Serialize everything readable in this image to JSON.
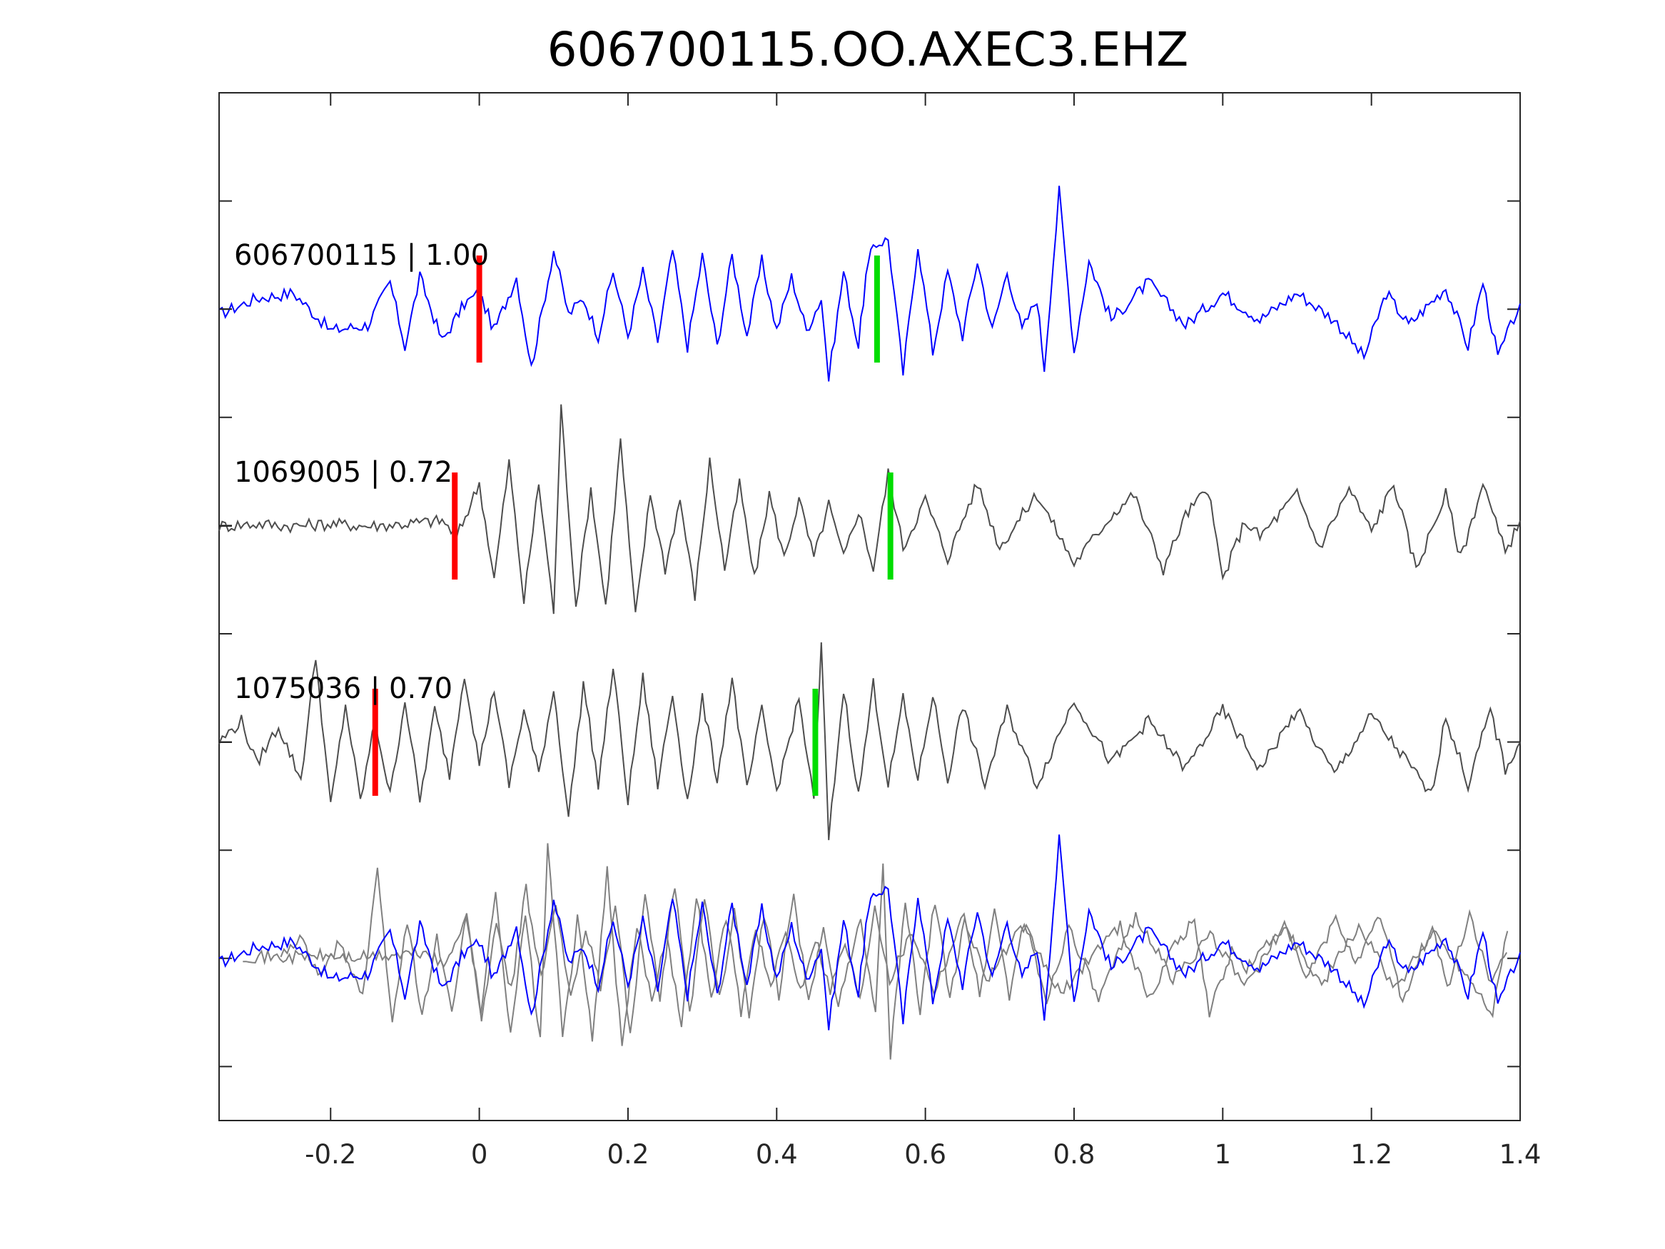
{
  "chart_data": {
    "type": "line",
    "title": "606700115.OO.AXEC3.EHZ",
    "xlabel": "",
    "ylabel": "",
    "xlim": [
      -0.35,
      1.4
    ],
    "xticks": [
      "-0.2",
      "0",
      "0.2",
      "0.4",
      "0.6",
      "0.8",
      "1",
      "1.2",
      "1.4"
    ],
    "xtick_values": [
      -0.2,
      0,
      0.2,
      0.4,
      0.6,
      0.8,
      1.0,
      1.2,
      1.4
    ],
    "yticks_labeled": false,
    "grid": false,
    "legend": "none",
    "colors": {
      "main": "#0000ff",
      "neighbor": "#4d4d4d",
      "overlay_neighbor": "#808080",
      "p_pick": "#ff0000",
      "s_pick": "#00dd00"
    },
    "series": [
      {
        "label": "606700115 | 1.00",
        "color": "main",
        "p_pick": 0.0,
        "s_pick": 0.535,
        "waveform": [
          [
            -0.35,
            -0.05
          ],
          [
            -0.3,
            0.1
          ],
          [
            -0.25,
            0.15
          ],
          [
            -0.2,
            -0.2
          ],
          [
            -0.15,
            -0.15
          ],
          [
            -0.12,
            0.25
          ],
          [
            -0.1,
            -0.35
          ],
          [
            -0.08,
            0.3
          ],
          [
            -0.05,
            -0.3
          ],
          [
            -0.02,
            0.05
          ],
          [
            0.0,
            0.15
          ],
          [
            0.02,
            -0.2
          ],
          [
            0.05,
            0.3
          ],
          [
            0.07,
            -0.55
          ],
          [
            0.1,
            0.55
          ],
          [
            0.12,
            -0.05
          ],
          [
            0.14,
            0.1
          ],
          [
            0.16,
            -0.25
          ],
          [
            0.18,
            0.35
          ],
          [
            0.2,
            -0.25
          ],
          [
            0.22,
            0.35
          ],
          [
            0.24,
            -0.3
          ],
          [
            0.26,
            0.55
          ],
          [
            0.28,
            -0.35
          ],
          [
            0.3,
            0.5
          ],
          [
            0.32,
            -0.35
          ],
          [
            0.34,
            0.5
          ],
          [
            0.36,
            -0.25
          ],
          [
            0.38,
            0.45
          ],
          [
            0.4,
            -0.2
          ],
          [
            0.42,
            0.3
          ],
          [
            0.44,
            -0.2
          ],
          [
            0.46,
            0.1
          ],
          [
            0.47,
            -0.65
          ],
          [
            0.49,
            0.35
          ],
          [
            0.51,
            -0.35
          ],
          [
            0.52,
            0.3
          ],
          [
            0.53,
            0.6
          ],
          [
            0.55,
            0.65
          ],
          [
            0.57,
            -0.6
          ],
          [
            0.59,
            0.6
          ],
          [
            0.61,
            -0.4
          ],
          [
            0.63,
            0.35
          ],
          [
            0.65,
            -0.25
          ],
          [
            0.67,
            0.45
          ],
          [
            0.69,
            -0.2
          ],
          [
            0.71,
            0.35
          ],
          [
            0.73,
            -0.2
          ],
          [
            0.75,
            0.1
          ],
          [
            0.76,
            -0.55
          ],
          [
            0.78,
            1.1
          ],
          [
            0.8,
            -0.4
          ],
          [
            0.82,
            0.45
          ],
          [
            0.85,
            -0.1
          ],
          [
            0.9,
            0.25
          ],
          [
            0.95,
            -0.15
          ],
          [
            1.0,
            0.15
          ],
          [
            1.05,
            -0.1
          ],
          [
            1.1,
            0.15
          ],
          [
            1.15,
            -0.1
          ],
          [
            1.19,
            -0.45
          ],
          [
            1.22,
            0.15
          ],
          [
            1.25,
            -0.15
          ],
          [
            1.3,
            0.2
          ],
          [
            1.33,
            -0.35
          ],
          [
            1.35,
            0.25
          ],
          [
            1.37,
            -0.45
          ],
          [
            1.4,
            0.05
          ]
        ]
      },
      {
        "label": "1069005 | 0.72",
        "color": "neighbor",
        "p_pick": -0.033,
        "s_pick": 0.553,
        "waveform": [
          [
            -0.35,
            0.0
          ],
          [
            -0.3,
            0.02
          ],
          [
            -0.25,
            0.0
          ],
          [
            -0.2,
            0.02
          ],
          [
            -0.15,
            0.0
          ],
          [
            -0.1,
            0.02
          ],
          [
            -0.05,
            0.05
          ],
          [
            -0.03,
            -0.1
          ],
          [
            0.0,
            0.4
          ],
          [
            0.02,
            -0.5
          ],
          [
            0.04,
            0.6
          ],
          [
            0.06,
            -0.7
          ],
          [
            0.08,
            0.4
          ],
          [
            0.1,
            -0.8
          ],
          [
            0.11,
            1.1
          ],
          [
            0.13,
            -0.75
          ],
          [
            0.15,
            0.35
          ],
          [
            0.17,
            -0.75
          ],
          [
            0.19,
            0.8
          ],
          [
            0.21,
            -0.85
          ],
          [
            0.23,
            0.3
          ],
          [
            0.25,
            -0.4
          ],
          [
            0.27,
            0.25
          ],
          [
            0.29,
            -0.65
          ],
          [
            0.31,
            0.6
          ],
          [
            0.33,
            -0.4
          ],
          [
            0.35,
            0.4
          ],
          [
            0.37,
            -0.5
          ],
          [
            0.39,
            0.3
          ],
          [
            0.41,
            -0.3
          ],
          [
            0.43,
            0.25
          ],
          [
            0.45,
            -0.3
          ],
          [
            0.47,
            0.2
          ],
          [
            0.49,
            -0.3
          ],
          [
            0.51,
            0.15
          ],
          [
            0.53,
            -0.4
          ],
          [
            0.55,
            0.5
          ],
          [
            0.57,
            -0.2
          ],
          [
            0.6,
            0.25
          ],
          [
            0.63,
            -0.3
          ],
          [
            0.67,
            0.4
          ],
          [
            0.7,
            -0.2
          ],
          [
            0.75,
            0.3
          ],
          [
            0.8,
            -0.35
          ],
          [
            0.85,
            0.1
          ],
          [
            0.88,
            0.3
          ],
          [
            0.92,
            -0.4
          ],
          [
            0.95,
            0.1
          ],
          [
            0.98,
            0.35
          ],
          [
            1.0,
            -0.5
          ],
          [
            1.03,
            0.05
          ],
          [
            1.05,
            -0.1
          ],
          [
            1.1,
            0.3
          ],
          [
            1.13,
            -0.2
          ],
          [
            1.17,
            0.35
          ],
          [
            1.2,
            -0.05
          ],
          [
            1.23,
            0.4
          ],
          [
            1.26,
            -0.4
          ],
          [
            1.3,
            0.3
          ],
          [
            1.32,
            -0.3
          ],
          [
            1.35,
            0.4
          ],
          [
            1.38,
            -0.25
          ],
          [
            1.4,
            0.05
          ]
        ]
      },
      {
        "label": "1075036 | 0.70",
        "color": "neighbor",
        "p_pick": -0.14,
        "s_pick": 0.452,
        "waveform": [
          [
            -0.35,
            0.0
          ],
          [
            -0.32,
            0.2
          ],
          [
            -0.3,
            -0.2
          ],
          [
            -0.27,
            0.15
          ],
          [
            -0.24,
            -0.35
          ],
          [
            -0.22,
            0.8
          ],
          [
            -0.2,
            -0.6
          ],
          [
            -0.18,
            0.35
          ],
          [
            -0.16,
            -0.55
          ],
          [
            -0.14,
            0.2
          ],
          [
            -0.12,
            -0.5
          ],
          [
            -0.1,
            0.4
          ],
          [
            -0.08,
            -0.55
          ],
          [
            -0.06,
            0.3
          ],
          [
            -0.04,
            -0.3
          ],
          [
            -0.02,
            0.65
          ],
          [
            0.0,
            -0.2
          ],
          [
            0.02,
            0.5
          ],
          [
            0.04,
            -0.4
          ],
          [
            0.06,
            0.3
          ],
          [
            0.08,
            -0.3
          ],
          [
            0.1,
            0.5
          ],
          [
            0.12,
            -0.7
          ],
          [
            0.14,
            0.55
          ],
          [
            0.16,
            -0.4
          ],
          [
            0.18,
            0.7
          ],
          [
            0.2,
            -0.55
          ],
          [
            0.22,
            0.6
          ],
          [
            0.24,
            -0.4
          ],
          [
            0.26,
            0.45
          ],
          [
            0.28,
            -0.55
          ],
          [
            0.3,
            0.4
          ],
          [
            0.32,
            -0.35
          ],
          [
            0.34,
            0.6
          ],
          [
            0.36,
            -0.45
          ],
          [
            0.38,
            0.3
          ],
          [
            0.4,
            -0.45
          ],
          [
            0.43,
            0.4
          ],
          [
            0.45,
            -0.55
          ],
          [
            0.46,
            0.9
          ],
          [
            0.47,
            -0.9
          ],
          [
            0.49,
            0.5
          ],
          [
            0.51,
            -0.5
          ],
          [
            0.53,
            0.55
          ],
          [
            0.55,
            -0.4
          ],
          [
            0.57,
            0.4
          ],
          [
            0.59,
            -0.35
          ],
          [
            0.61,
            0.45
          ],
          [
            0.63,
            -0.35
          ],
          [
            0.65,
            0.35
          ],
          [
            0.68,
            -0.4
          ],
          [
            0.71,
            0.3
          ],
          [
            0.75,
            -0.4
          ],
          [
            0.8,
            0.4
          ],
          [
            0.85,
            -0.2
          ],
          [
            0.9,
            0.2
          ],
          [
            0.95,
            -0.25
          ],
          [
            1.0,
            0.3
          ],
          [
            1.05,
            -0.25
          ],
          [
            1.1,
            0.3
          ],
          [
            1.15,
            -0.3
          ],
          [
            1.2,
            0.25
          ],
          [
            1.25,
            -0.2
          ],
          [
            1.28,
            -0.5
          ],
          [
            1.3,
            0.25
          ],
          [
            1.33,
            -0.4
          ],
          [
            1.36,
            0.3
          ],
          [
            1.38,
            -0.25
          ],
          [
            1.4,
            0.0
          ]
        ]
      }
    ],
    "overlay_panel": "all three traces aligned and overlaid in bottom row"
  }
}
